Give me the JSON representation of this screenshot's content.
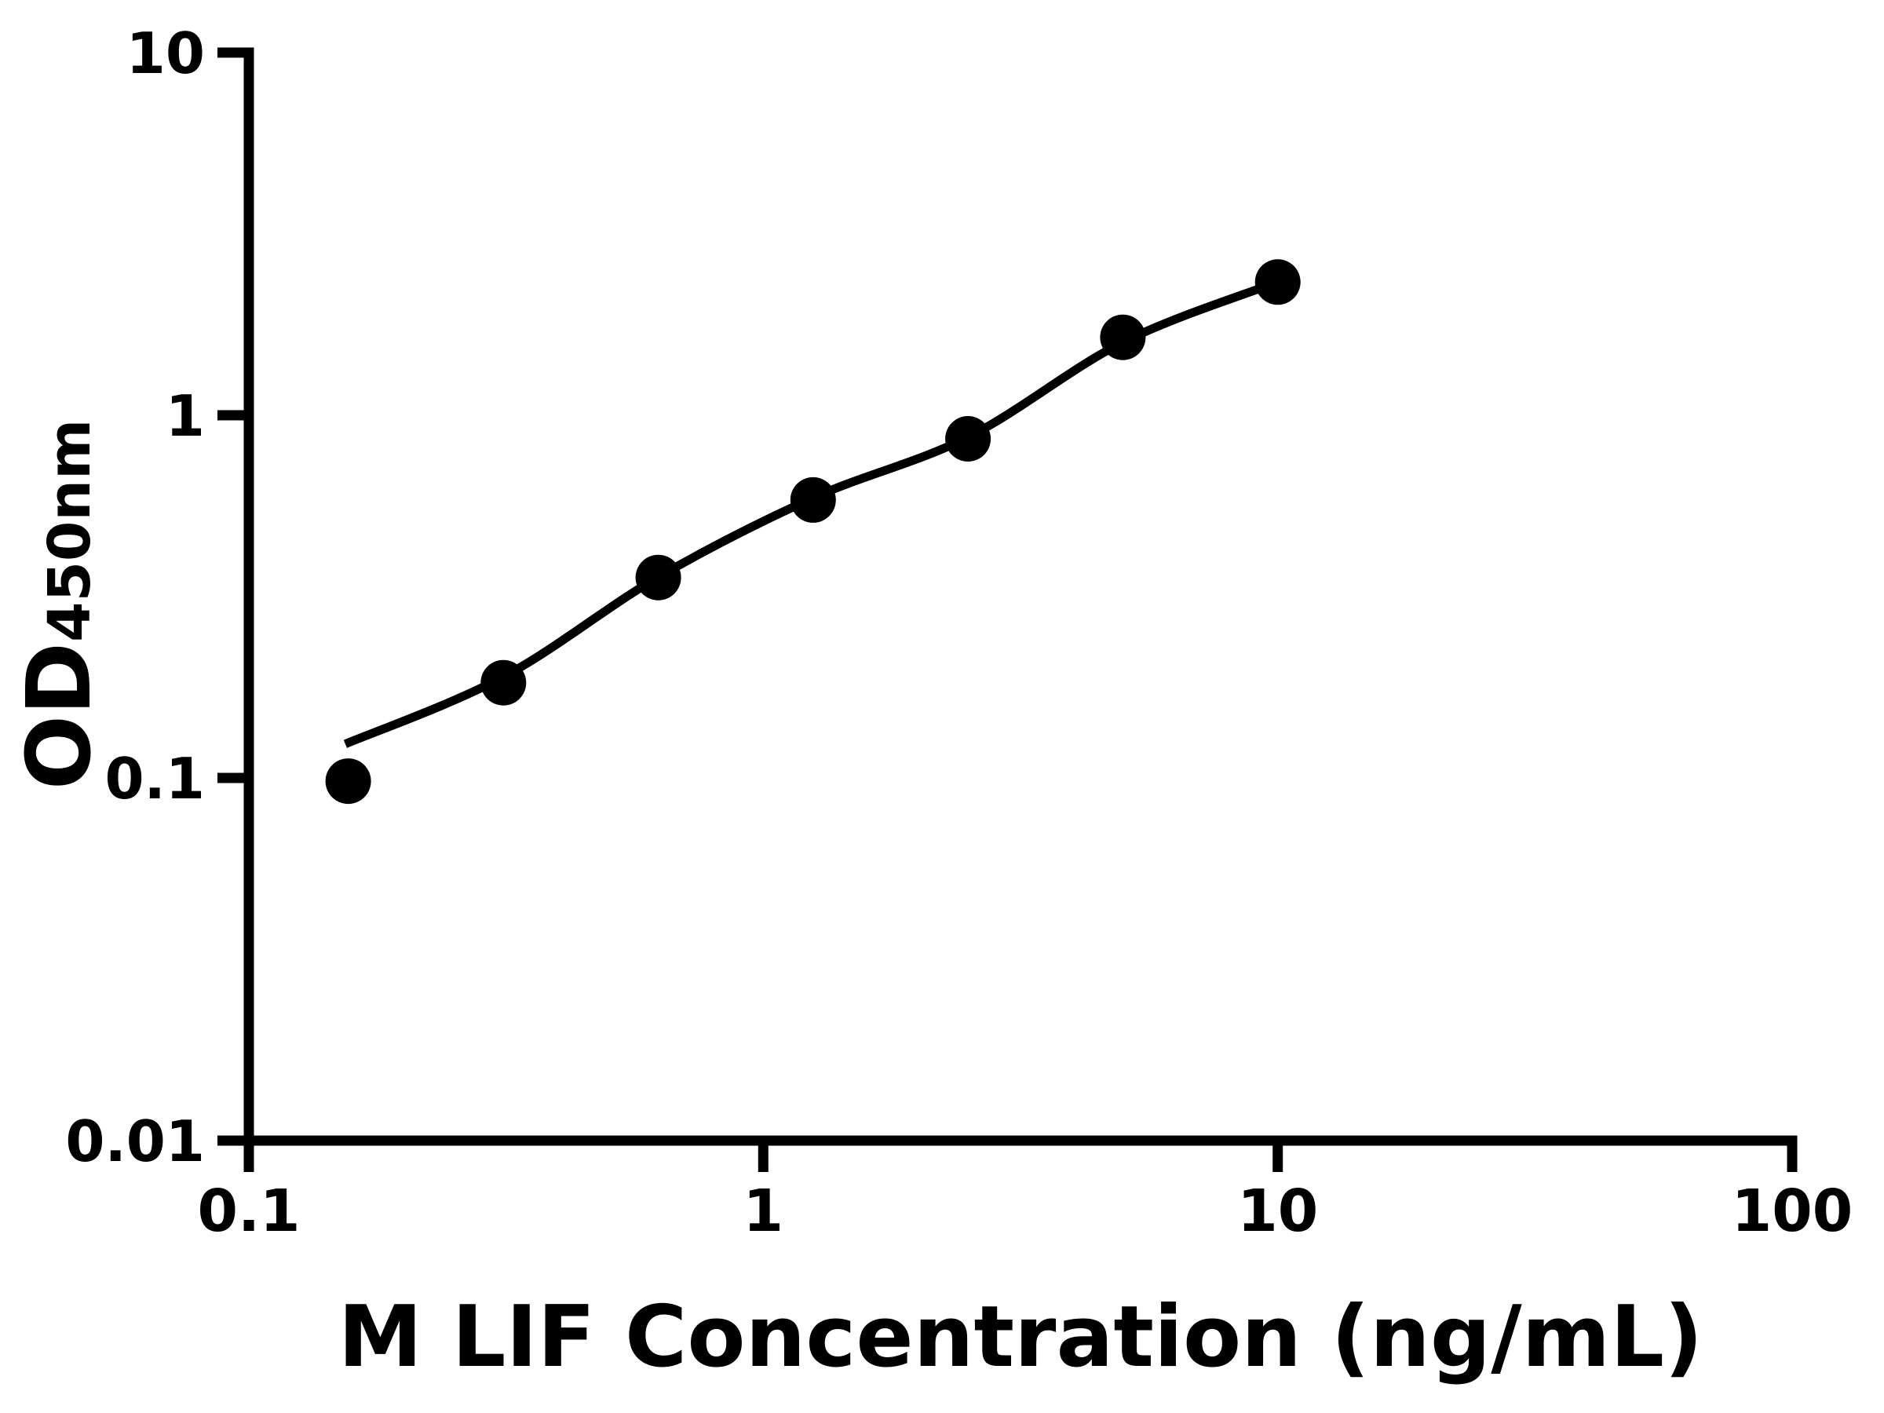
{
  "chart_data": {
    "type": "scatter",
    "title": "",
    "xlabel": "M LIF Concentration (ng/mL)",
    "ylabel_main": "OD",
    "ylabel_sub": "450nm",
    "ylabel_full": "OD450nm",
    "x_scale": "log",
    "y_scale": "log",
    "xlim": [
      0.1,
      100
    ],
    "ylim": [
      0.01,
      10
    ],
    "x_ticks": [
      {
        "value": 0.1,
        "label": "0.1"
      },
      {
        "value": 1,
        "label": "1"
      },
      {
        "value": 10,
        "label": "10"
      },
      {
        "value": 100,
        "label": "100"
      }
    ],
    "y_ticks": [
      {
        "value": 0.01,
        "label": "0.01"
      },
      {
        "value": 0.1,
        "label": "0.1"
      },
      {
        "value": 1,
        "label": "1"
      },
      {
        "value": 10,
        "label": "10"
      }
    ],
    "grid": false,
    "legend": "none",
    "background_color": "#ffffff",
    "axis_color": "#000000",
    "series": [
      {
        "name": "standard-points",
        "marker": "filled-circle",
        "color": "#000000",
        "x": [
          0.156,
          0.3125,
          0.625,
          1.25,
          2.5,
          5,
          10
        ],
        "y": [
          0.098,
          0.183,
          0.357,
          0.584,
          0.861,
          1.64,
          2.33
        ]
      }
    ],
    "fit_curve": {
      "name": "fitted-standard-curve",
      "color": "#000000",
      "x": [
        0.154,
        0.3125,
        0.625,
        1.25,
        2.5,
        5,
        10
      ],
      "y": [
        0.124,
        0.19,
        0.358,
        0.592,
        0.87,
        1.59,
        2.33
      ]
    }
  }
}
